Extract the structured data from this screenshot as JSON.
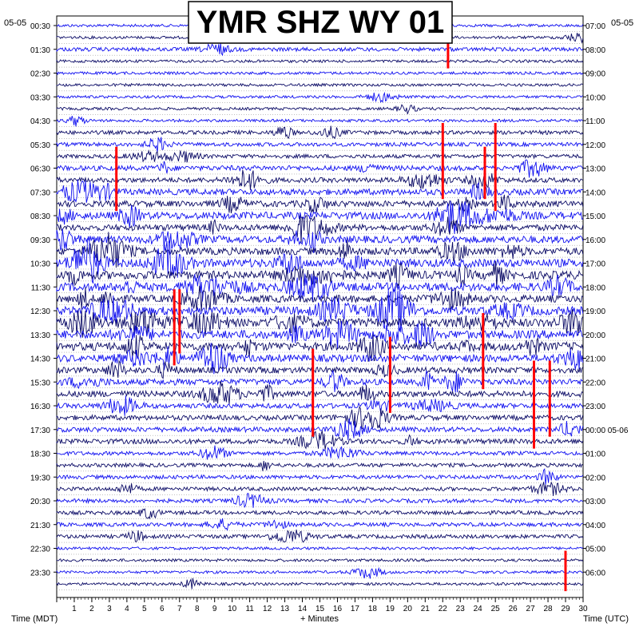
{
  "title": "YMR SHZ WY 01",
  "left_date": "05-05",
  "right_date": "05-05",
  "left_times": [
    "00:30",
    "01:30",
    "02:30",
    "03:30",
    "04:30",
    "05:30",
    "06:30",
    "07:30",
    "08:30",
    "09:30",
    "10:30",
    "11:30",
    "12:30",
    "13:30",
    "14:30",
    "15:30",
    "16:30",
    "17:30",
    "18:30",
    "19:30",
    "20:30",
    "21:30",
    "22:30",
    "23:30"
  ],
  "right_times": [
    "07:00",
    "08:00",
    "09:00",
    "10:00",
    "11:00",
    "12:00",
    "13:00",
    "14:00",
    "15:00",
    "16:00",
    "17:00",
    "18:00",
    "19:00",
    "20:00",
    "21:00",
    "22:00",
    "23:00",
    "00:00 05-06",
    "01:00",
    "02:00",
    "03:00",
    "04:00",
    "05:00",
    "06:00"
  ],
  "minute_ticks": [
    "1",
    "2",
    "3",
    "4",
    "5",
    "6",
    "7",
    "8",
    "9",
    "10",
    "11",
    "12",
    "13",
    "14",
    "15",
    "16",
    "17",
    "18",
    "19",
    "20",
    "21",
    "22",
    "23",
    "24",
    "25",
    "26",
    "27",
    "28",
    "29",
    "30"
  ],
  "xlabel": "+ Minutes",
  "left_axis_label": "Time (MDT)",
  "right_axis_label": "Time (UTC)",
  "colors": {
    "trace_light": "#1010f0",
    "trace_dark": "#0b0b66",
    "clip": "#ff0000",
    "grid": "#9a9a9a"
  },
  "chart_data": {
    "type": "line",
    "title": "YMR SHZ WY 01",
    "xlabel": "+ Minutes",
    "xlim": [
      0,
      30
    ],
    "rows": 48,
    "row_duration_minutes": 30,
    "activity_level": [
      1,
      1,
      2,
      1,
      1,
      1,
      1,
      1,
      1,
      2,
      2,
      2,
      3,
      3,
      4,
      4,
      5,
      4,
      5,
      5,
      6,
      6,
      6,
      5,
      6,
      6,
      6,
      6,
      5,
      4,
      4,
      4,
      3,
      3,
      3,
      3,
      2,
      2,
      2,
      2,
      2,
      2,
      2,
      2,
      1,
      1,
      1,
      1
    ],
    "clipped_events": [
      {
        "row": 2,
        "minute": 22.3,
        "rows_span": 2
      },
      {
        "row": 9,
        "minute": 22.0,
        "rows_span": 6
      },
      {
        "row": 9,
        "minute": 25.0,
        "rows_span": 7
      },
      {
        "row": 11,
        "minute": 24.4,
        "rows_span": 4
      },
      {
        "row": 11,
        "minute": 3.4,
        "rows_span": 5
      },
      {
        "row": 23,
        "minute": 6.7,
        "rows_span": 6
      },
      {
        "row": 23,
        "minute": 7.0,
        "rows_span": 5
      },
      {
        "row": 25,
        "minute": 24.3,
        "rows_span": 6
      },
      {
        "row": 27,
        "minute": 19.0,
        "rows_span": 6
      },
      {
        "row": 28,
        "minute": 14.6,
        "rows_span": 7
      },
      {
        "row": 29,
        "minute": 27.2,
        "rows_span": 7
      },
      {
        "row": 29,
        "minute": 28.1,
        "rows_span": 6
      },
      {
        "row": 45,
        "minute": 29.0,
        "rows_span": 3
      }
    ]
  }
}
